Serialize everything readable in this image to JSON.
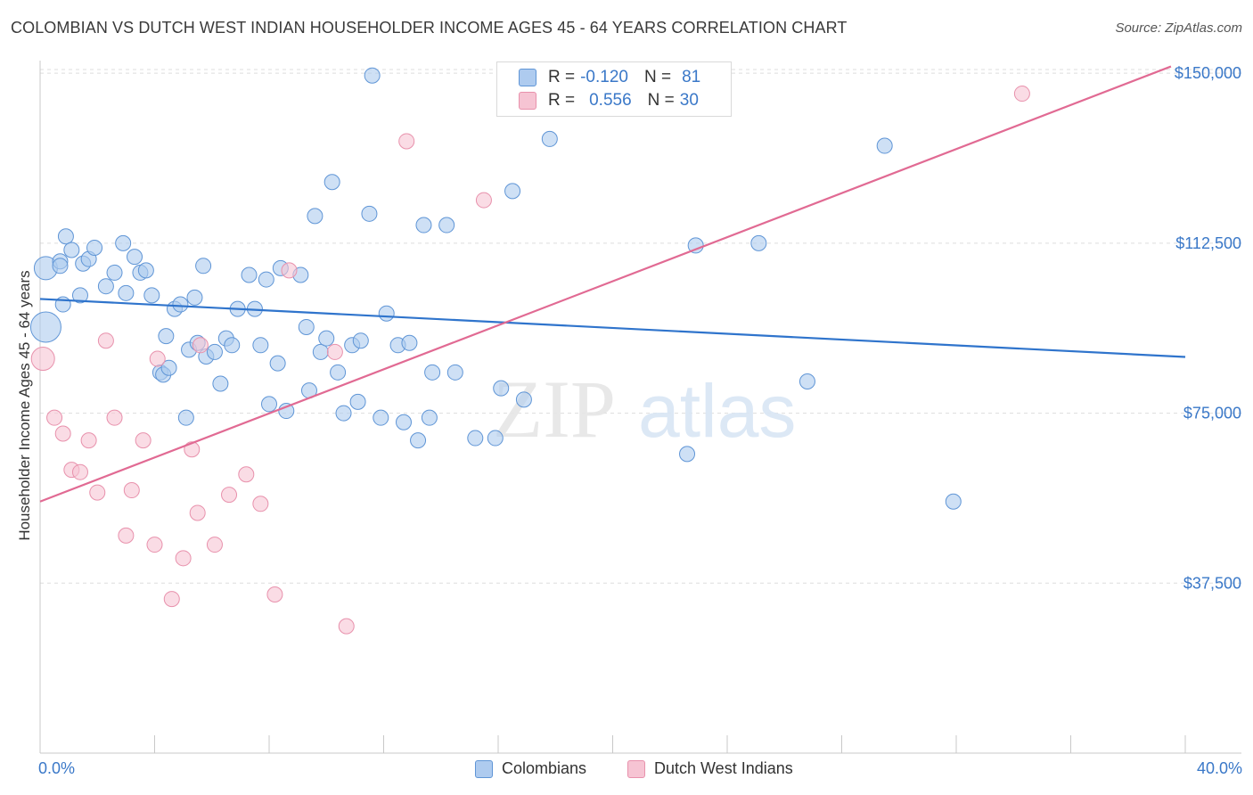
{
  "header": {
    "title": "COLOMBIAN VS DUTCH WEST INDIAN HOUSEHOLDER INCOME AGES 45 - 64 YEARS CORRELATION CHART",
    "source": "Source: ZipAtlas.com"
  },
  "legend": {
    "r_label": "R =",
    "n_label": "N =",
    "series": [
      {
        "r": "-0.120",
        "n": "81"
      },
      {
        "r": "0.556",
        "n": "30"
      }
    ]
  },
  "bottom_legend": {
    "colombians": "Colombians",
    "dutch": "Dutch West Indians"
  },
  "watermark": {
    "zip": "ZIP",
    "atlas": "atlas"
  },
  "colors": {
    "blue_fill": "#aecbef",
    "blue_stroke": "#5f95d6",
    "blue_line": "#2f74cc",
    "pink_fill": "#f6c4d3",
    "pink_stroke": "#e891ac",
    "pink_line": "#e16a93",
    "axis_text": "#3a78c8",
    "grid": "#dddddd"
  },
  "chart_data": {
    "type": "scatter",
    "title": "COLOMBIAN VS DUTCH WEST INDIAN HOUSEHOLDER INCOME AGES 45 - 64 YEARS CORRELATION CHART",
    "xlabel": "",
    "ylabel": "Householder Income Ages 45 - 64 years",
    "xlim": [
      0,
      40
    ],
    "ylim": [
      0,
      152000
    ],
    "x_tick_labels": [
      "0.0%",
      "40.0%"
    ],
    "y_ticks": [
      37500,
      75000,
      112500,
      150000
    ],
    "y_tick_labels": [
      "$37,500",
      "$75,000",
      "$112,500",
      "$150,000"
    ],
    "grid": true,
    "legend_position": "top-center",
    "series": [
      {
        "name": "Colombians",
        "r": -0.12,
        "n": 81,
        "trend": {
          "x": [
            0,
            40
          ],
          "y": [
            100200,
            87400
          ]
        },
        "points": [
          [
            0.2,
            107000,
            2
          ],
          [
            0.2,
            94000,
            3
          ],
          [
            0.7,
            108500,
            1
          ],
          [
            0.9,
            114000,
            1
          ],
          [
            0.8,
            99000,
            1
          ],
          [
            1.1,
            111000,
            1
          ],
          [
            1.4,
            101000,
            1
          ],
          [
            1.5,
            108000,
            1
          ],
          [
            1.7,
            109000,
            1
          ],
          [
            1.9,
            111500,
            1
          ],
          [
            2.3,
            103000,
            1
          ],
          [
            2.6,
            106000,
            1
          ],
          [
            2.9,
            112500,
            1
          ],
          [
            3.0,
            101500,
            1
          ],
          [
            3.3,
            109500,
            1
          ],
          [
            3.5,
            106000,
            1
          ],
          [
            3.7,
            106500,
            1
          ],
          [
            3.9,
            101000,
            1
          ],
          [
            4.2,
            84000,
            1
          ],
          [
            4.3,
            83500,
            1
          ],
          [
            4.4,
            92000,
            1
          ],
          [
            4.7,
            98000,
            1
          ],
          [
            4.9,
            99000,
            1
          ],
          [
            5.1,
            74000,
            1
          ],
          [
            5.2,
            89000,
            1
          ],
          [
            5.4,
            100500,
            1
          ],
          [
            5.5,
            90500,
            1
          ],
          [
            5.7,
            107500,
            1
          ],
          [
            5.8,
            87500,
            1
          ],
          [
            6.1,
            88500,
            1
          ],
          [
            6.3,
            81500,
            1
          ],
          [
            6.5,
            91500,
            1
          ],
          [
            6.7,
            90000,
            1
          ],
          [
            6.9,
            98000,
            1
          ],
          [
            7.3,
            105500,
            1
          ],
          [
            7.5,
            98000,
            1
          ],
          [
            7.7,
            90000,
            1
          ],
          [
            7.9,
            104500,
            1
          ],
          [
            8.0,
            77000,
            1
          ],
          [
            8.3,
            86000,
            1
          ],
          [
            8.4,
            107000,
            1
          ],
          [
            8.6,
            75500,
            1
          ],
          [
            9.1,
            105500,
            1
          ],
          [
            9.3,
            94000,
            1
          ],
          [
            9.6,
            118500,
            1
          ],
          [
            9.8,
            88500,
            1
          ],
          [
            10.0,
            91500,
            1
          ],
          [
            10.2,
            126000,
            1
          ],
          [
            10.4,
            84000,
            1
          ],
          [
            10.6,
            75000,
            1
          ],
          [
            10.9,
            90000,
            1
          ],
          [
            11.1,
            77500,
            1
          ],
          [
            11.2,
            91000,
            1
          ],
          [
            11.5,
            119000,
            1
          ],
          [
            11.6,
            149500,
            1
          ],
          [
            11.9,
            74000,
            1
          ],
          [
            12.1,
            97000,
            1
          ],
          [
            12.5,
            90000,
            1
          ],
          [
            12.7,
            73000,
            1
          ],
          [
            12.9,
            90500,
            1
          ],
          [
            13.2,
            69000,
            1
          ],
          [
            13.4,
            116500,
            1
          ],
          [
            13.6,
            74000,
            1
          ],
          [
            13.7,
            84000,
            1
          ],
          [
            14.2,
            116500,
            1
          ],
          [
            14.5,
            84000,
            1
          ],
          [
            15.2,
            69500,
            1
          ],
          [
            15.9,
            69500,
            1
          ],
          [
            16.1,
            80500,
            1
          ],
          [
            16.5,
            124000,
            1
          ],
          [
            16.9,
            78000,
            1
          ],
          [
            17.8,
            135500,
            1
          ],
          [
            22.6,
            66000,
            1
          ],
          [
            22.9,
            112000,
            1
          ],
          [
            25.1,
            112500,
            1
          ],
          [
            26.8,
            82000,
            1
          ],
          [
            29.5,
            134000,
            1
          ],
          [
            31.9,
            55500,
            1
          ],
          [
            0.7,
            107500,
            1
          ],
          [
            4.5,
            85000,
            1
          ],
          [
            9.4,
            80000,
            1
          ]
        ]
      },
      {
        "name": "Dutch West Indians",
        "r": 0.556,
        "n": 30,
        "trend": {
          "x": [
            0,
            39.5
          ],
          "y": [
            55500,
            151500
          ]
        },
        "points": [
          [
            0.1,
            87000,
            2
          ],
          [
            0.5,
            74000,
            1
          ],
          [
            0.8,
            70500,
            1
          ],
          [
            1.1,
            62500,
            1
          ],
          [
            1.4,
            62000,
            1
          ],
          [
            1.7,
            69000,
            1
          ],
          [
            2.0,
            57500,
            1
          ],
          [
            2.3,
            91000,
            1
          ],
          [
            2.6,
            74000,
            1
          ],
          [
            3.0,
            48000,
            1
          ],
          [
            3.2,
            58000,
            1
          ],
          [
            3.6,
            69000,
            1
          ],
          [
            4.0,
            46000,
            1
          ],
          [
            4.1,
            87000,
            1
          ],
          [
            4.6,
            34000,
            1
          ],
          [
            5.0,
            43000,
            1
          ],
          [
            5.3,
            67000,
            1
          ],
          [
            5.5,
            53000,
            1
          ],
          [
            5.6,
            90000,
            1
          ],
          [
            6.1,
            46000,
            1
          ],
          [
            6.6,
            57000,
            1
          ],
          [
            7.2,
            61500,
            1
          ],
          [
            7.7,
            55000,
            1
          ],
          [
            8.2,
            35000,
            1
          ],
          [
            8.7,
            106500,
            1
          ],
          [
            10.3,
            88500,
            1
          ],
          [
            10.7,
            28000,
            1
          ],
          [
            12.8,
            135000,
            1
          ],
          [
            15.5,
            122000,
            1
          ],
          [
            34.3,
            145500,
            1
          ]
        ]
      }
    ]
  }
}
